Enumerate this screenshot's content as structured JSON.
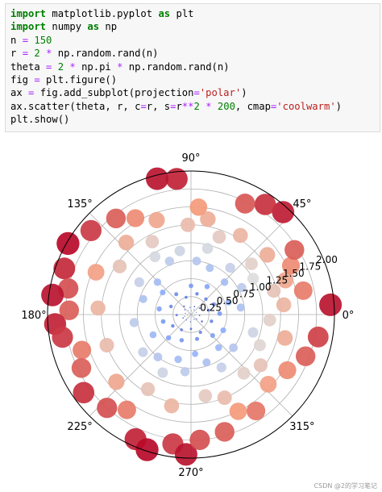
{
  "code": {
    "lines": [
      [
        {
          "t": "import",
          "c": "kw"
        },
        {
          "t": " matplotlib.pyplot ",
          "c": ""
        },
        {
          "t": "as",
          "c": "kw"
        },
        {
          "t": " plt",
          "c": ""
        }
      ],
      [
        {
          "t": "import",
          "c": "kw"
        },
        {
          "t": " numpy ",
          "c": ""
        },
        {
          "t": "as",
          "c": "kw"
        },
        {
          "t": " np",
          "c": ""
        }
      ],
      [
        {
          "t": "n ",
          "c": ""
        },
        {
          "t": "=",
          "c": "op"
        },
        {
          "t": " ",
          "c": ""
        },
        {
          "t": "150",
          "c": "num"
        }
      ],
      [
        {
          "t": "r ",
          "c": ""
        },
        {
          "t": "=",
          "c": "op"
        },
        {
          "t": " ",
          "c": ""
        },
        {
          "t": "2",
          "c": "num"
        },
        {
          "t": " ",
          "c": ""
        },
        {
          "t": "*",
          "c": "op"
        },
        {
          "t": " np.random.rand(n)",
          "c": ""
        }
      ],
      [
        {
          "t": "theta ",
          "c": ""
        },
        {
          "t": "=",
          "c": "op"
        },
        {
          "t": " ",
          "c": ""
        },
        {
          "t": "2",
          "c": "num"
        },
        {
          "t": " ",
          "c": ""
        },
        {
          "t": "*",
          "c": "op"
        },
        {
          "t": " np.pi ",
          "c": ""
        },
        {
          "t": "*",
          "c": "op"
        },
        {
          "t": " np.random.rand(n)",
          "c": ""
        }
      ],
      [
        {
          "t": "fig ",
          "c": ""
        },
        {
          "t": "=",
          "c": "op"
        },
        {
          "t": " plt.figure()",
          "c": ""
        }
      ],
      [
        {
          "t": "ax ",
          "c": ""
        },
        {
          "t": "=",
          "c": "op"
        },
        {
          "t": " fig.add_subplot(projection",
          "c": ""
        },
        {
          "t": "=",
          "c": "op"
        },
        {
          "t": "'polar'",
          "c": "str"
        },
        {
          "t": ")",
          "c": ""
        }
      ],
      [
        {
          "t": "ax.scatter(theta, r, c",
          "c": ""
        },
        {
          "t": "=",
          "c": "op"
        },
        {
          "t": "r, s",
          "c": ""
        },
        {
          "t": "=",
          "c": "op"
        },
        {
          "t": "r",
          "c": ""
        },
        {
          "t": "**",
          "c": "op"
        },
        {
          "t": "2",
          "c": "num"
        },
        {
          "t": " ",
          "c": ""
        },
        {
          "t": "*",
          "c": "op"
        },
        {
          "t": " ",
          "c": ""
        },
        {
          "t": "200",
          "c": "num"
        },
        {
          "t": ", cmap",
          "c": ""
        },
        {
          "t": "=",
          "c": "op"
        },
        {
          "t": "'coolwarm'",
          "c": "str"
        },
        {
          "t": ")",
          "c": ""
        }
      ],
      [
        {
          "t": "plt.show()",
          "c": ""
        }
      ]
    ]
  },
  "chart_data": {
    "type": "scatter",
    "projection": "polar",
    "colormap": "coolwarm",
    "rlim": [
      0,
      2
    ],
    "angle_ticks": [
      "0°",
      "45°",
      "90°",
      "135°",
      "180°",
      "225°",
      "270°",
      "315°"
    ],
    "radial_ticks": [
      "0.25",
      "0.50",
      "0.75",
      "1.00",
      "1.25",
      "1.50",
      "1.75",
      "2.00"
    ],
    "grid": true,
    "points": [
      [
        48,
        1.92
      ],
      [
        56,
        1.85
      ],
      [
        64,
        1.72
      ],
      [
        96,
        1.9
      ],
      [
        104,
        1.95
      ],
      [
        120,
        1.55
      ],
      [
        128,
        1.7
      ],
      [
        140,
        1.82
      ],
      [
        150,
        1.98
      ],
      [
        160,
        1.88
      ],
      [
        168,
        1.75
      ],
      [
        172,
        1.95
      ],
      [
        178,
        1.7
      ],
      [
        184,
        1.9
      ],
      [
        190,
        1.82
      ],
      [
        198,
        1.6
      ],
      [
        206,
        1.7
      ],
      [
        216,
        1.85
      ],
      [
        228,
        1.75
      ],
      [
        236,
        1.6
      ],
      [
        246,
        1.9
      ],
      [
        252,
        1.98
      ],
      [
        262,
        1.82
      ],
      [
        268,
        1.95
      ],
      [
        274,
        1.75
      ],
      [
        286,
        1.7
      ],
      [
        296,
        1.5
      ],
      [
        304,
        1.62
      ],
      [
        318,
        1.45
      ],
      [
        330,
        1.55
      ],
      [
        340,
        1.7
      ],
      [
        350,
        1.8
      ],
      [
        4,
        1.95
      ],
      [
        12,
        1.6
      ],
      [
        20,
        1.4
      ],
      [
        26,
        1.55
      ],
      [
        32,
        1.7
      ],
      [
        38,
        1.35
      ],
      [
        58,
        1.3
      ],
      [
        70,
        1.15
      ],
      [
        80,
        1.35
      ],
      [
        86,
        1.5
      ],
      [
        92,
        1.25
      ],
      [
        110,
        1.4
      ],
      [
        118,
        1.15
      ],
      [
        132,
        1.35
      ],
      [
        146,
        1.2
      ],
      [
        156,
        1.45
      ],
      [
        176,
        1.3
      ],
      [
        200,
        1.25
      ],
      [
        222,
        1.4
      ],
      [
        240,
        1.2
      ],
      [
        258,
        1.3
      ],
      [
        280,
        1.15
      ],
      [
        292,
        1.25
      ],
      [
        312,
        1.1
      ],
      [
        324,
        1.2
      ],
      [
        336,
        1.05
      ],
      [
        346,
        1.35
      ],
      [
        356,
        1.1
      ],
      [
        6,
        1.3
      ],
      [
        16,
        1.2
      ],
      [
        30,
        1.0
      ],
      [
        40,
        1.1
      ],
      [
        50,
        0.85
      ],
      [
        68,
        0.7
      ],
      [
        76,
        0.95
      ],
      [
        84,
        0.75
      ],
      [
        100,
        0.9
      ],
      [
        112,
        0.8
      ],
      [
        122,
        0.95
      ],
      [
        136,
        0.65
      ],
      [
        148,
        0.85
      ],
      [
        162,
        0.7
      ],
      [
        188,
        0.8
      ],
      [
        208,
        0.6
      ],
      [
        218,
        0.85
      ],
      [
        232,
        0.75
      ],
      [
        244,
        0.9
      ],
      [
        254,
        0.65
      ],
      [
        264,
        0.8
      ],
      [
        276,
        0.55
      ],
      [
        288,
        0.7
      ],
      [
        300,
        0.85
      ],
      [
        310,
        0.6
      ],
      [
        322,
        0.75
      ],
      [
        334,
        0.5
      ],
      [
        344,
        0.9
      ],
      [
        8,
        0.7
      ],
      [
        18,
        0.55
      ],
      [
        28,
        0.8
      ],
      [
        44,
        0.65
      ],
      [
        60,
        0.45
      ],
      [
        74,
        0.3
      ],
      [
        90,
        0.4
      ],
      [
        106,
        0.25
      ],
      [
        126,
        0.35
      ],
      [
        142,
        0.5
      ],
      [
        158,
        0.3
      ],
      [
        170,
        0.45
      ],
      [
        182,
        0.2
      ],
      [
        194,
        0.4
      ],
      [
        212,
        0.3
      ],
      [
        226,
        0.45
      ],
      [
        238,
        0.25
      ],
      [
        250,
        0.38
      ],
      [
        270,
        0.2
      ],
      [
        284,
        0.35
      ],
      [
        298,
        0.28
      ],
      [
        316,
        0.42
      ],
      [
        328,
        0.18
      ],
      [
        342,
        0.3
      ],
      [
        354,
        0.12
      ],
      [
        2,
        0.4
      ],
      [
        14,
        0.25
      ],
      [
        24,
        0.35
      ],
      [
        36,
        0.15
      ],
      [
        46,
        0.3
      ],
      [
        66,
        0.12
      ],
      [
        98,
        0.1
      ],
      [
        130,
        0.15
      ],
      [
        166,
        0.08
      ],
      [
        204,
        0.12
      ],
      [
        234,
        0.06
      ],
      [
        266,
        0.1
      ],
      [
        302,
        0.08
      ],
      [
        338,
        0.05
      ],
      [
        22,
        0.08
      ],
      [
        80,
        0.05
      ],
      [
        152,
        0.04
      ],
      [
        190,
        0.05
      ],
      [
        246,
        0.03
      ],
      [
        310,
        0.02
      ],
      [
        350,
        0.06
      ],
      [
        120,
        0.07
      ],
      [
        196,
        0.09
      ],
      [
        280,
        0.04
      ],
      [
        10,
        0.03
      ],
      [
        58,
        0.08
      ],
      [
        142,
        0.11
      ],
      [
        230,
        0.1
      ],
      [
        322,
        0.1
      ]
    ]
  }
}
